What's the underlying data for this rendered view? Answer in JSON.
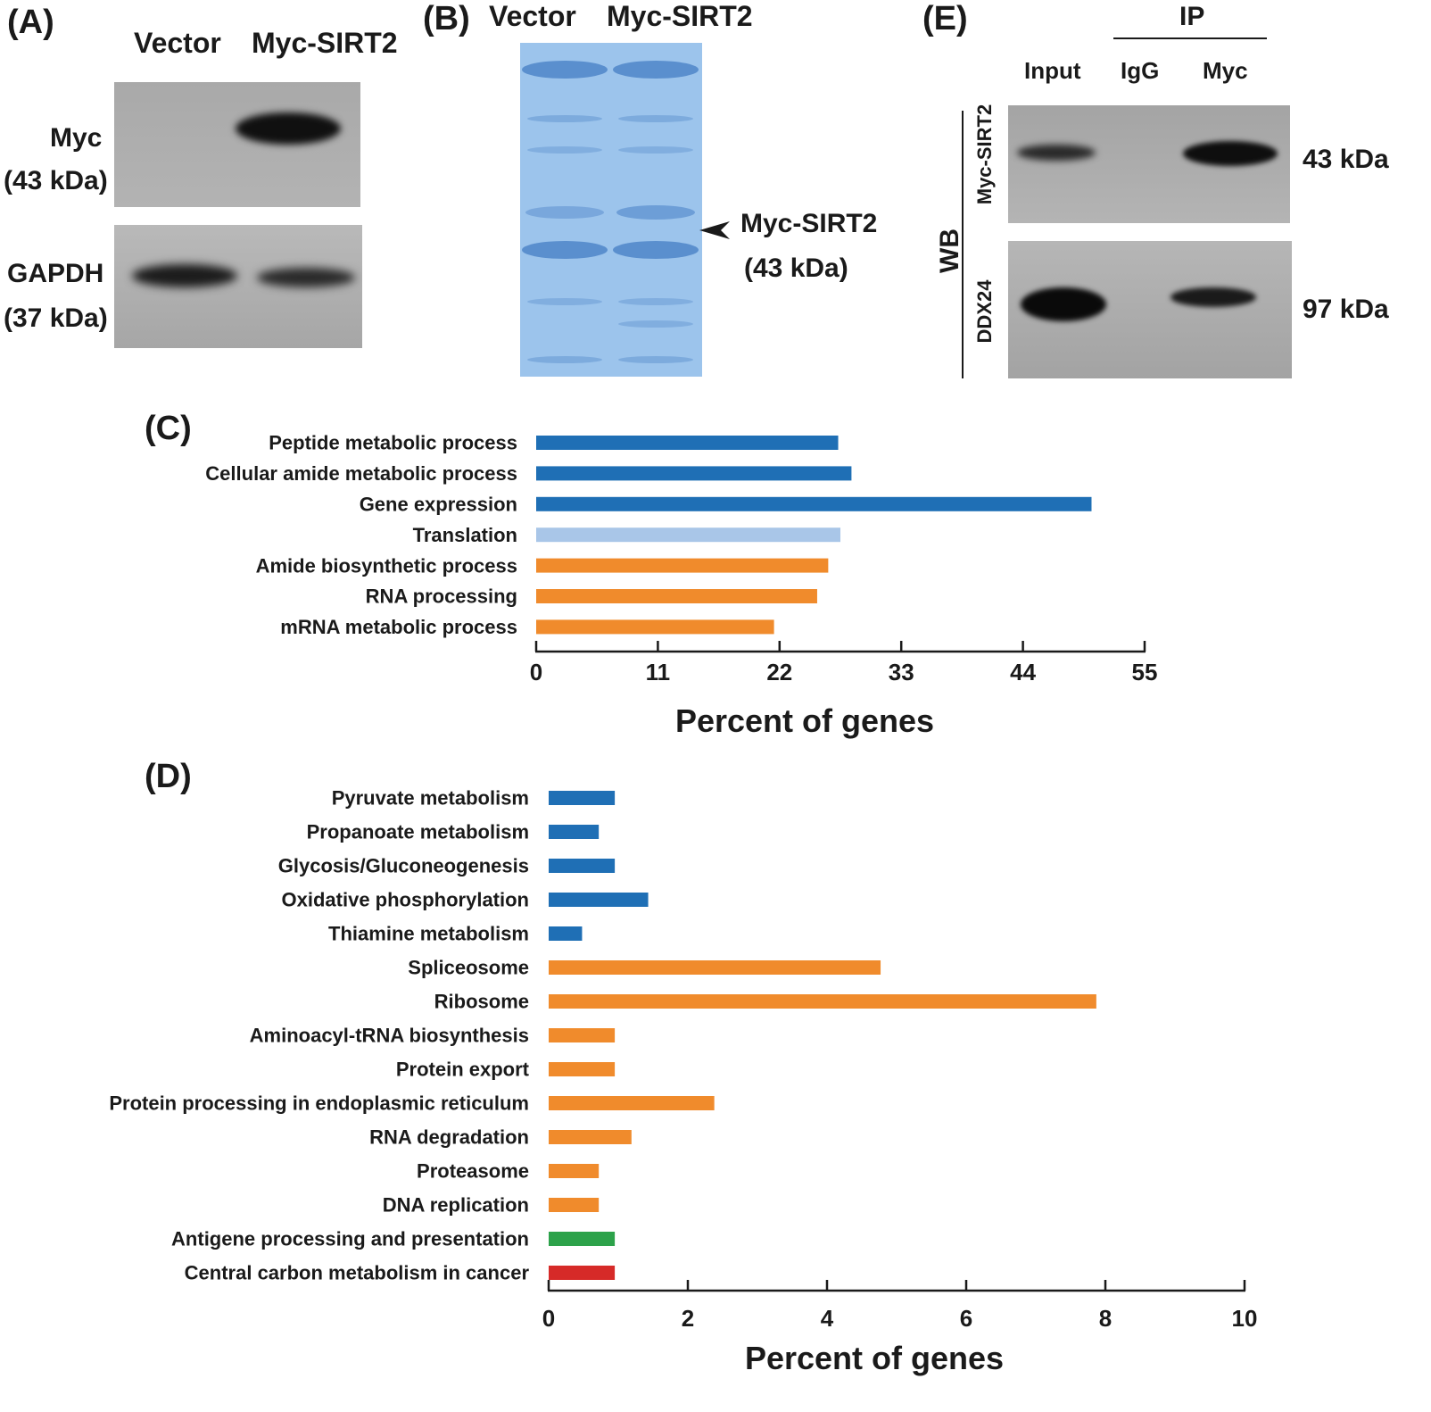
{
  "panel_a": {
    "label": "(A)",
    "lanes": [
      "Vector",
      "Myc-SIRT2"
    ],
    "blots": [
      {
        "name": "Myc",
        "size": "(43 kDa)"
      },
      {
        "name": "GAPDH",
        "size": "(37 kDa)"
      }
    ]
  },
  "panel_b": {
    "label": "(B)",
    "lanes": [
      "Vector",
      "Myc-SIRT2"
    ],
    "arrow_label": "Myc-SIRT2",
    "arrow_size": "(43 kDa)",
    "gel_color": "#9cc4ec"
  },
  "panel_e": {
    "label": "(E)",
    "ip_label": "IP",
    "lanes": [
      "Input",
      "IgG",
      "Myc"
    ],
    "wb_label": "WB",
    "blots": [
      {
        "name": "Myc-SIRT2",
        "size": "43 kDa"
      },
      {
        "name": "DDX24",
        "size": "97 kDa"
      }
    ]
  },
  "chart_data": [
    {
      "panel": "(C)",
      "type": "bar",
      "orientation": "horizontal",
      "categories": [
        "Peptide metabolic process",
        "Cellular amide metabolic process",
        "Gene expression",
        "Translation",
        "Amide biosynthetic process",
        "RNA processing",
        "mRNA metabolic process"
      ],
      "values": [
        27.3,
        28.5,
        50.2,
        27.5,
        26.4,
        25.4,
        21.5
      ],
      "colors": [
        "#1f6fb5",
        "#1f6fb5",
        "#1f6fb5",
        "#a9c6e8",
        "#f08b2c",
        "#f08b2c",
        "#f08b2c"
      ],
      "xlabel": "Percent of genes",
      "xlim": [
        0,
        55
      ],
      "xticks": [
        "0",
        "11",
        "22",
        "33",
        "44",
        "55"
      ]
    },
    {
      "panel": "(D)",
      "type": "bar",
      "orientation": "horizontal",
      "categories": [
        "Pyruvate metabolism",
        "Propanoate metabolism",
        "Glycosis/Gluconeogenesis",
        "Oxidative phosphorylation",
        "Thiamine metabolism",
        "Spliceosome",
        "Ribosome",
        "Aminoacyl-tRNA biosynthesis",
        "Protein export",
        "Protein processing in endoplasmic reticulum",
        "RNA degradation",
        "Proteasome",
        "DNA replication",
        "Antigene processing and presentation",
        "Central carbon metabolism in cancer"
      ],
      "values": [
        0.95,
        0.72,
        0.95,
        1.43,
        0.48,
        4.77,
        7.87,
        0.95,
        0.95,
        2.38,
        1.19,
        0.72,
        0.72,
        0.95,
        0.95
      ],
      "colors": [
        "#1f6fb5",
        "#1f6fb5",
        "#1f6fb5",
        "#1f6fb5",
        "#1f6fb5",
        "#f08b2c",
        "#f08b2c",
        "#f08b2c",
        "#f08b2c",
        "#f08b2c",
        "#f08b2c",
        "#f08b2c",
        "#f08b2c",
        "#2ca24a",
        "#d62a28"
      ],
      "xlabel": "Percent of genes",
      "xlim": [
        0,
        10
      ],
      "xticks": [
        "0",
        "2",
        "4",
        "6",
        "8",
        "10"
      ]
    }
  ]
}
